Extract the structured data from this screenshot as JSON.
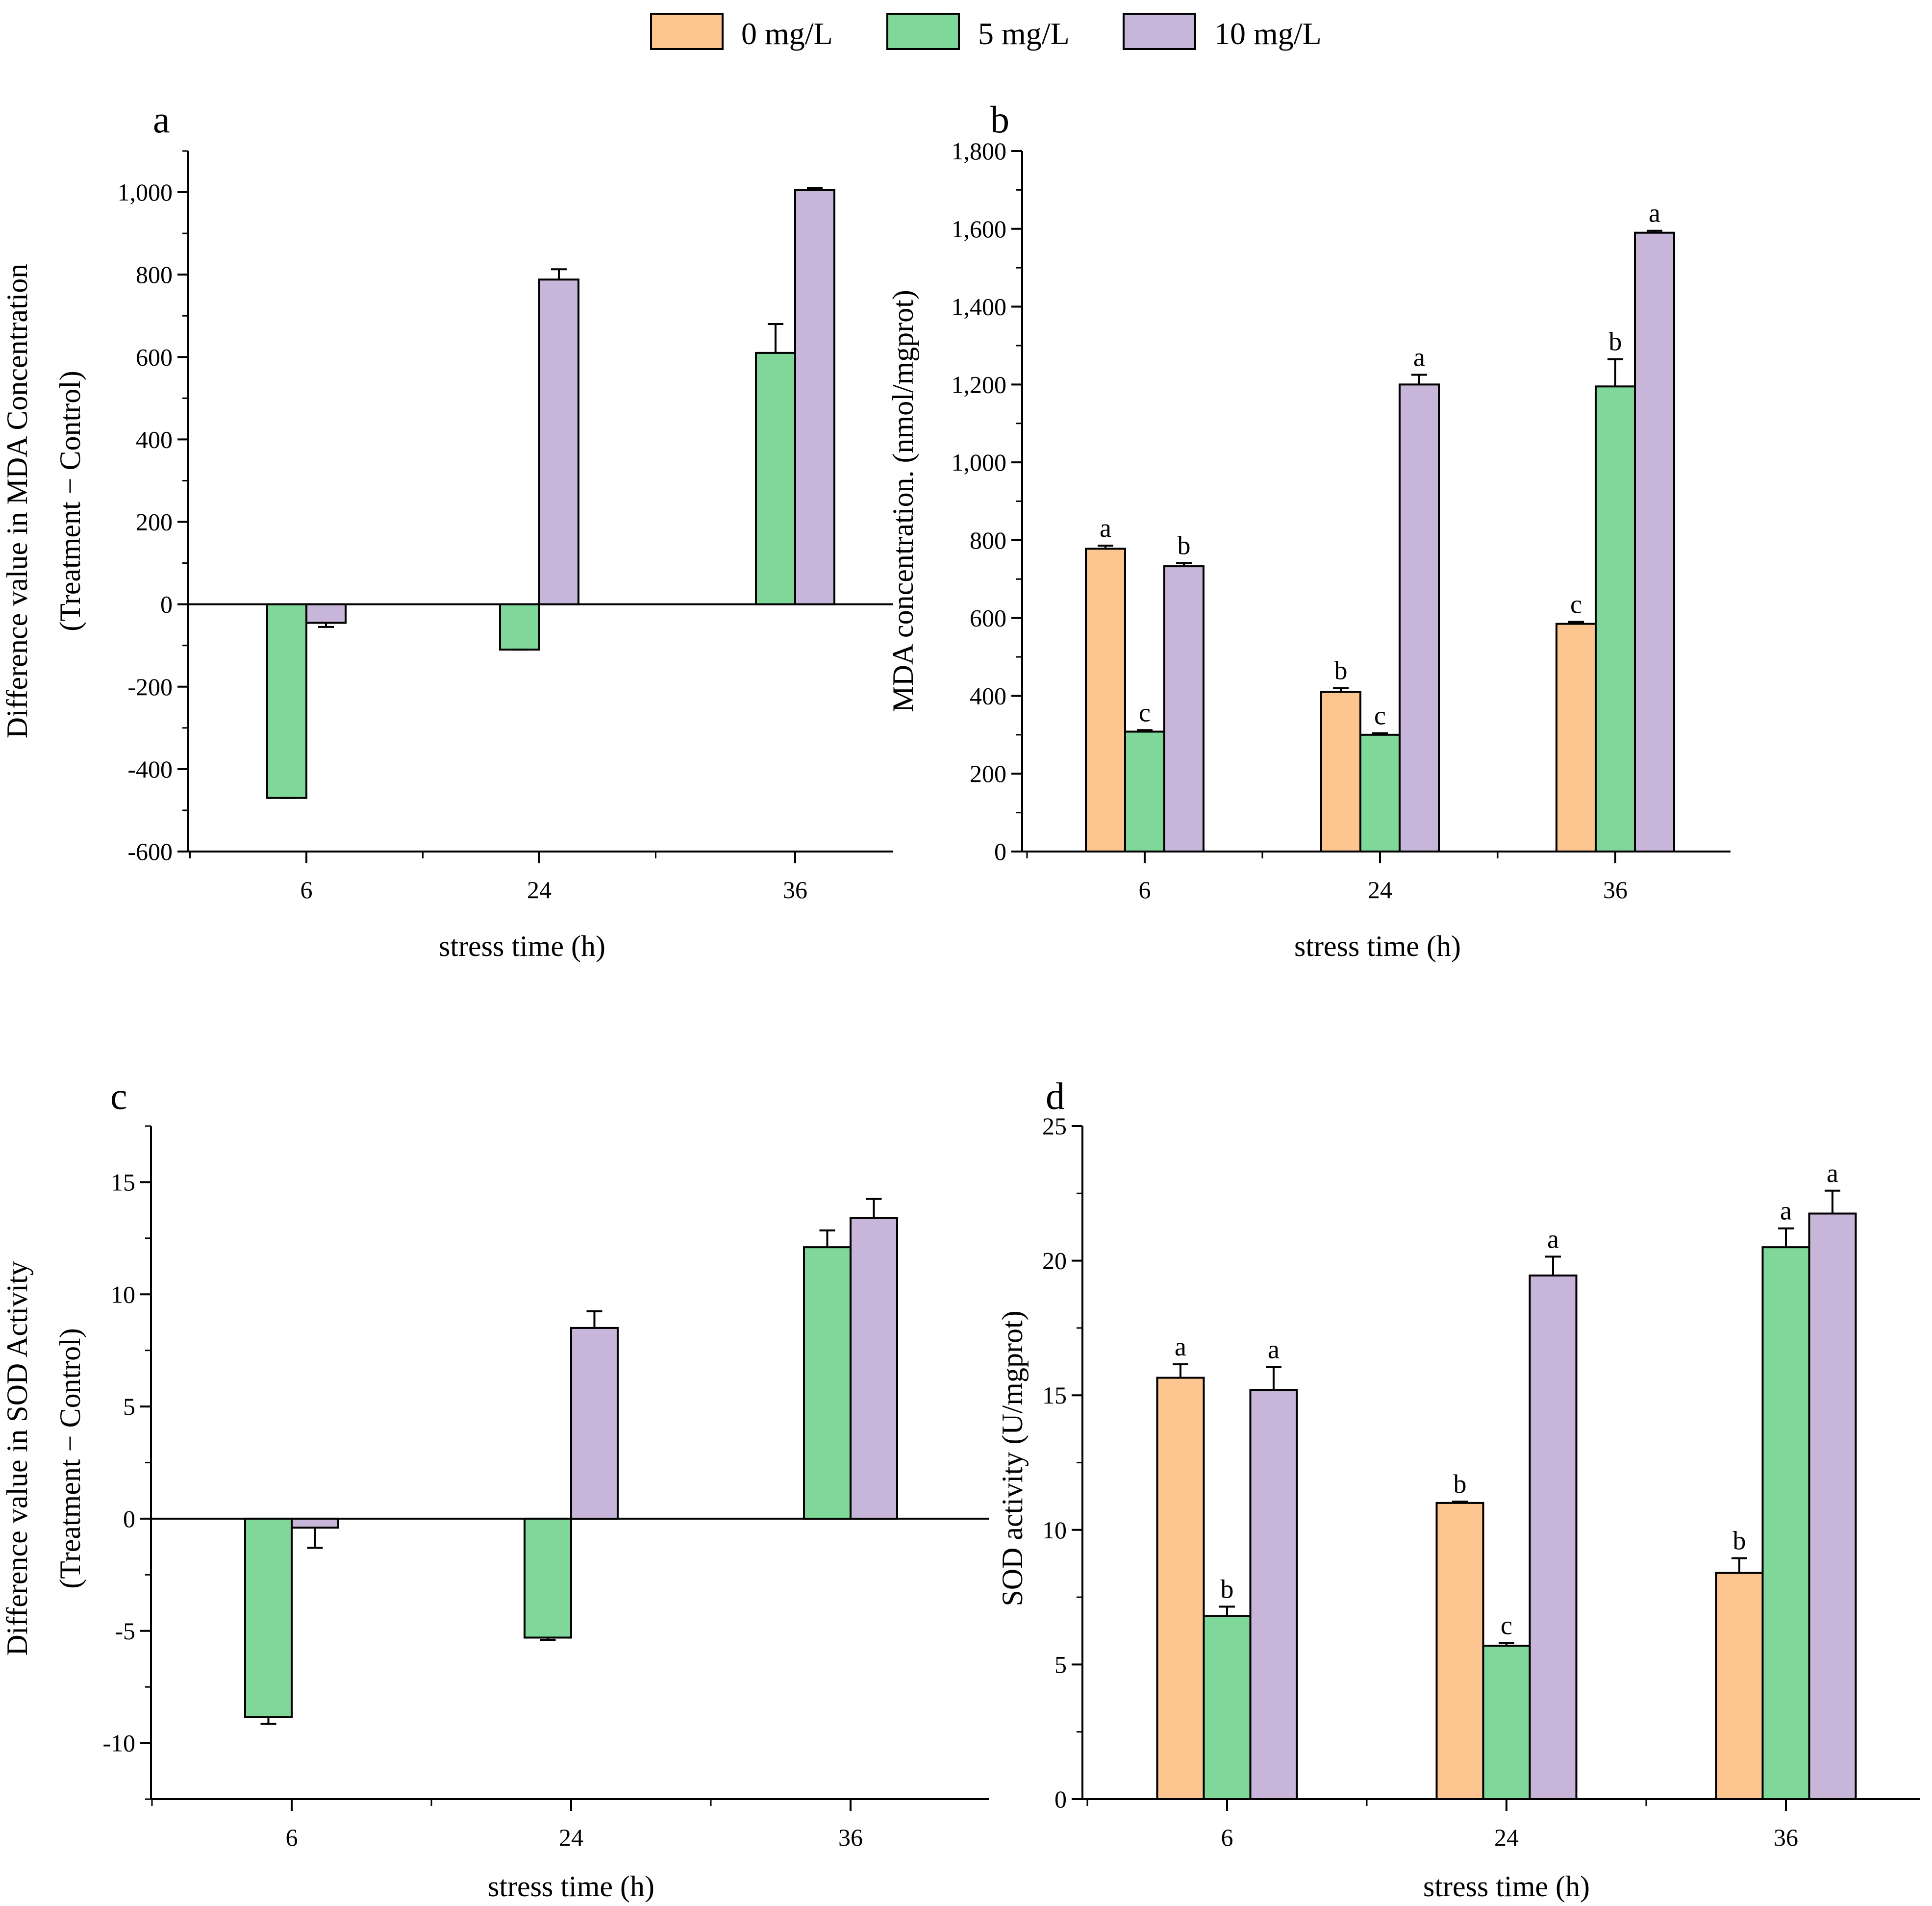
{
  "legend": [
    {
      "label": "0 mg/L",
      "color": "#FDC690"
    },
    {
      "label": "5 mg/L",
      "color": "#7FD899"
    },
    {
      "label": "10 mg/L",
      "color": "#C8B5DA"
    }
  ],
  "chart_data": [
    {
      "id": "a",
      "type": "bar",
      "panel_label": "a",
      "categories": [
        "6",
        "24",
        "36"
      ],
      "xlabel": "stress time (h)",
      "ylabel": [
        "Difference value in MDA Concentration",
        "(Treatment − Control)"
      ],
      "ylim": [
        -600,
        1100
      ],
      "yticks": [
        -600,
        -400,
        -200,
        0,
        200,
        400,
        600,
        800,
        1000
      ],
      "ytick_labels": [
        "-600",
        "-400",
        "-200",
        "0",
        "200",
        "400",
        "600",
        "800",
        "1,000"
      ],
      "series": [
        {
          "name": "5 mg/L",
          "values": [
            -470,
            -110,
            610
          ],
          "errors": [
            0,
            0,
            70
          ]
        },
        {
          "name": "10 mg/L",
          "values": [
            -45,
            788,
            1005
          ],
          "errors": [
            10,
            25,
            5
          ]
        }
      ],
      "zero_line": true
    },
    {
      "id": "b",
      "type": "bar",
      "panel_label": "b",
      "categories": [
        "6",
        "24",
        "36"
      ],
      "xlabel": "stress time (h)",
      "ylabel": [
        "MDA concentration. (nmol/mgprot)"
      ],
      "ylim": [
        0,
        1800
      ],
      "yticks": [
        0,
        200,
        400,
        600,
        800,
        1000,
        1200,
        1400,
        1600,
        1800
      ],
      "ytick_labels": [
        "0",
        "200",
        "400",
        "600",
        "800",
        "1,000",
        "1,200",
        "1,400",
        "1,600",
        "1,800"
      ],
      "series": [
        {
          "name": "0 mg/L",
          "values": [
            778,
            410,
            585
          ],
          "errors": [
            8,
            10,
            5
          ],
          "letters": [
            "a",
            "b",
            "c"
          ]
        },
        {
          "name": "5 mg/L",
          "values": [
            308,
            300,
            1195
          ],
          "errors": [
            4,
            4,
            70
          ],
          "letters": [
            "c",
            "c",
            "b"
          ]
        },
        {
          "name": "10 mg/L",
          "values": [
            733,
            1200,
            1590
          ],
          "errors": [
            8,
            25,
            5
          ],
          "letters": [
            "b",
            "a",
            "a"
          ]
        }
      ]
    },
    {
      "id": "c",
      "type": "bar",
      "panel_label": "c",
      "categories": [
        "6",
        "24",
        "36"
      ],
      "xlabel": "stress time (h)",
      "ylabel": [
        "Difference value in SOD Activity",
        "(Treatment − Control)"
      ],
      "ylim": [
        -12.5,
        17.5
      ],
      "yticks": [
        -10,
        -5,
        0,
        5,
        10,
        15
      ],
      "ytick_labels": [
        "-10",
        "-5",
        "0",
        "5",
        "10",
        "15"
      ],
      "series": [
        {
          "name": "5 mg/L",
          "values": [
            -8.85,
            -5.3,
            12.1
          ],
          "errors": [
            0.3,
            0.1,
            0.75
          ]
        },
        {
          "name": "10 mg/L",
          "values": [
            -0.4,
            8.5,
            13.4
          ],
          "errors": [
            0.9,
            0.75,
            0.85
          ]
        }
      ],
      "zero_line": true
    },
    {
      "id": "d",
      "type": "bar",
      "panel_label": "d",
      "categories": [
        "6",
        "24",
        "36"
      ],
      "xlabel": "stress time (h)",
      "ylabel": [
        "SOD activity (U/mgprot)"
      ],
      "ylim": [
        0,
        25
      ],
      "yticks": [
        0,
        5,
        10,
        15,
        20,
        25
      ],
      "ytick_labels": [
        "0",
        "5",
        "10",
        "15",
        "20",
        "25"
      ],
      "series": [
        {
          "name": "0 mg/L",
          "values": [
            15.65,
            11.0,
            8.4
          ],
          "errors": [
            0.5,
            0.05,
            0.55
          ],
          "letters": [
            "a",
            "b",
            "b"
          ]
        },
        {
          "name": "5 mg/L",
          "values": [
            6.8,
            5.7,
            20.5
          ],
          "errors": [
            0.35,
            0.1,
            0.7
          ],
          "letters": [
            "b",
            "c",
            "a"
          ]
        },
        {
          "name": "10 mg/L",
          "values": [
            15.2,
            19.45,
            21.75
          ],
          "errors": [
            0.85,
            0.7,
            0.85
          ],
          "letters": [
            "a",
            "a",
            "a"
          ]
        }
      ]
    }
  ]
}
